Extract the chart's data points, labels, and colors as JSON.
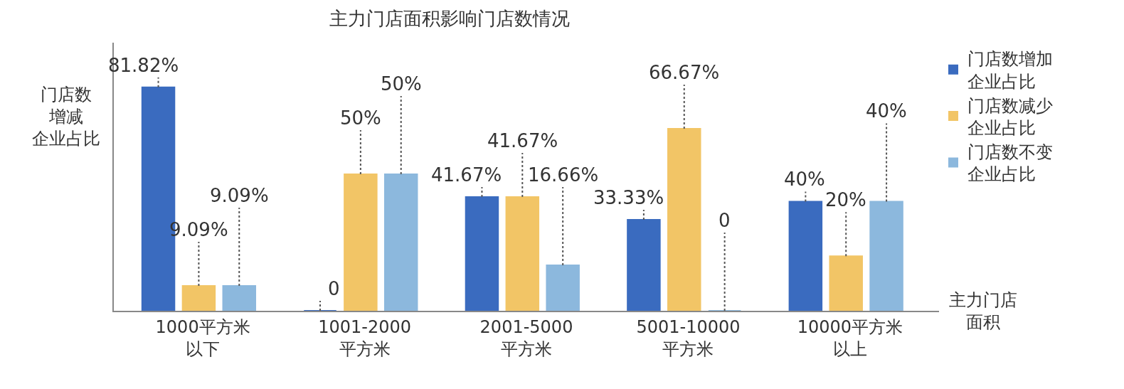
{
  "chart_data": {
    "type": "bar",
    "title": "主力门店面积影响门店数情况",
    "xlabel": "主力门店面积",
    "ylabel": "门店数增减企业占比",
    "categories": [
      "1000平方米以下",
      "1001-2000平方米",
      "2001-5000平方米",
      "5001-10000平方米",
      "10000平方米以上"
    ],
    "series": [
      {
        "name": "门店数增加企业占比",
        "color": "#3a6bbf",
        "values": [
          81.82,
          0,
          41.67,
          33.33,
          40
        ],
        "value_labels": [
          "81.82%",
          "0",
          "41.67%",
          "33.33%",
          "40%"
        ]
      },
      {
        "name": "门店数减少企业占比",
        "color": "#f2c566",
        "values": [
          9.09,
          50,
          41.67,
          66.67,
          20
        ],
        "value_labels": [
          "9.09%",
          "50%",
          "41.67%",
          "66.67%",
          "20%"
        ]
      },
      {
        "name": "门店数不变企业占比",
        "color": "#8cb8dd",
        "values": [
          9.09,
          50,
          16.66,
          0,
          40
        ],
        "value_labels": [
          "9.09%",
          "50%",
          "16.66%",
          "0",
          "40%"
        ]
      }
    ],
    "tick_labels": "x",
    "legend": "top right"
  }
}
